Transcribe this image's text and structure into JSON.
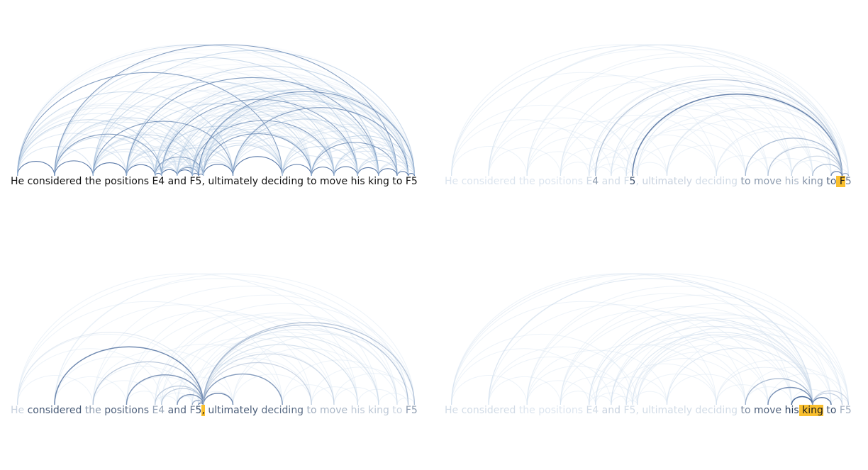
{
  "sentence": "He considered the positions E4 and F5, ultimately deciding to move his king to F5",
  "tokens": [
    "He",
    " considered",
    " the",
    " positions",
    " E",
    "4",
    " and",
    " F",
    "5",
    ",",
    " ultimately",
    " deciding",
    " to",
    " move",
    " his",
    " king",
    " to",
    " F",
    "5"
  ],
  "colors": {
    "arc_strong": "#4a6da0",
    "arc_light": "#dbe7f3",
    "highlight": "#f9bf2e",
    "text_default": "#111111"
  },
  "panels": [
    {
      "id": "all-attention",
      "focus_token": null,
      "token_shades": [
        1,
        1,
        1,
        1,
        1,
        1,
        1,
        1,
        1,
        1,
        1,
        1,
        1,
        1,
        1,
        1,
        1,
        1,
        1
      ]
    },
    {
      "id": "focus-F",
      "focus_token": 17,
      "token_shades": [
        0.05,
        0.05,
        0.05,
        0.05,
        0.1,
        0.45,
        0.1,
        0.1,
        0.85,
        0.1,
        0.15,
        0.1,
        0.5,
        0.45,
        0.3,
        0.5,
        0.8,
        1,
        0.6
      ]
    },
    {
      "id": "focus-comma",
      "focus_token": 9,
      "token_shades": [
        0.15,
        0.8,
        0.45,
        0.75,
        0.4,
        0.4,
        0.75,
        0.6,
        0.85,
        1,
        0.8,
        0.7,
        0.35,
        0.3,
        0.2,
        0.2,
        0.15,
        0.45,
        0.45
      ]
    },
    {
      "id": "focus-king",
      "focus_token": 15,
      "token_shades": [
        0.1,
        0.1,
        0.05,
        0.05,
        0.1,
        0.1,
        0.15,
        0.1,
        0.1,
        0.1,
        0.1,
        0.1,
        0.55,
        0.75,
        0.95,
        1,
        0.85,
        0.35,
        0.35
      ]
    }
  ]
}
